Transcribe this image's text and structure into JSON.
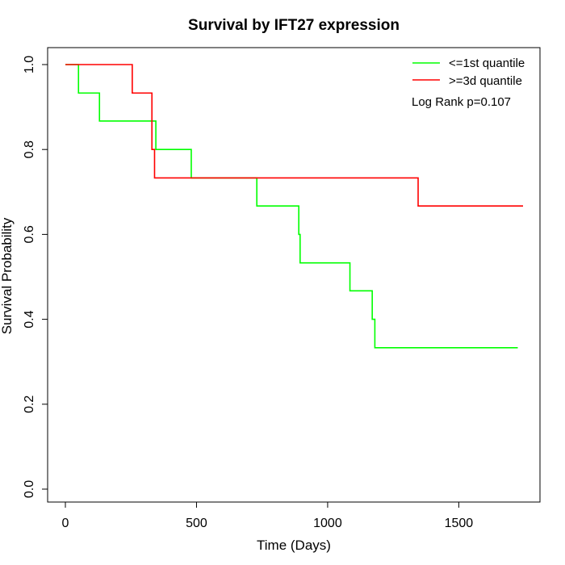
{
  "chart_data": {
    "type": "line",
    "subtype": "kaplan-meier step",
    "title": "Survival by IFT27 expression",
    "xlabel": "Time (Days)",
    "ylabel": "Survival Probability",
    "xlim": [
      0,
      1800
    ],
    "ylim": [
      0,
      1.0
    ],
    "x_ticks": [
      0,
      500,
      1000,
      1500
    ],
    "x_tick_labels": [
      "0",
      "500",
      "1000",
      "1500"
    ],
    "y_ticks": [
      0.0,
      0.2,
      0.4,
      0.6,
      0.8,
      1.0
    ],
    "y_tick_labels": [
      "0.0",
      "0.2",
      "0.4",
      "0.6",
      "0.8",
      "1.0"
    ],
    "grid": false,
    "legend_position": "top-right",
    "annotation": "Log Rank p=0.107",
    "series": [
      {
        "name": "<=1st quantile",
        "color": "#00ff00",
        "x": [
          0,
          50,
          130,
          345,
          480,
          730,
          890,
          895,
          1085,
          1170,
          1180,
          1725
        ],
        "y": [
          1.0,
          0.933,
          0.867,
          0.8,
          0.733,
          0.667,
          0.6,
          0.533,
          0.467,
          0.4,
          0.333,
          0.333
        ]
      },
      {
        "name": ">=3d quantile",
        "color": "#ff0000",
        "x": [
          0,
          255,
          330,
          340,
          1345,
          1745
        ],
        "y": [
          1.0,
          0.933,
          0.8,
          0.733,
          0.667,
          0.667
        ]
      }
    ]
  }
}
